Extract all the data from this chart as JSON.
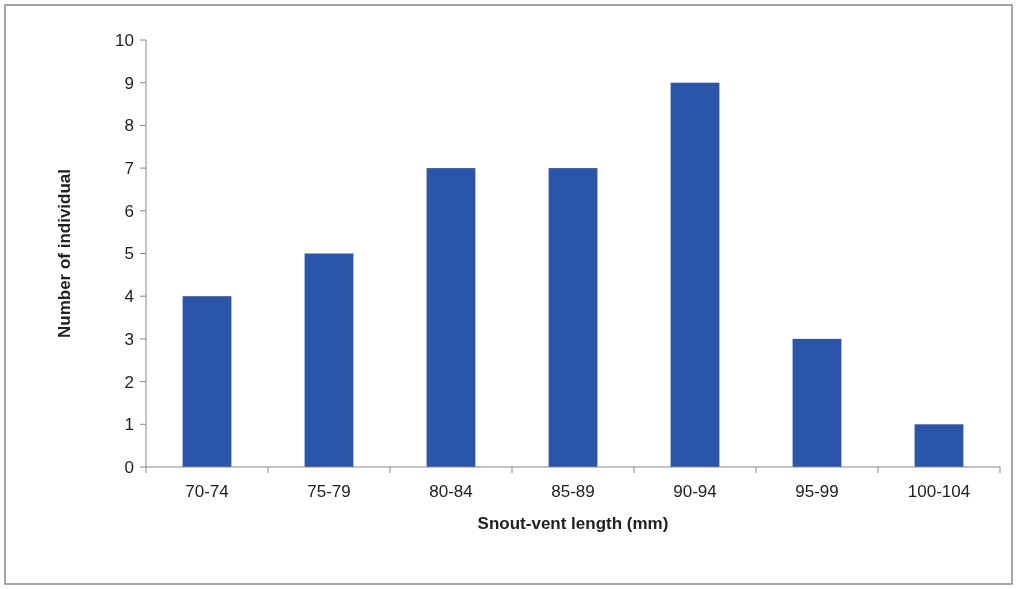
{
  "chart_data": {
    "type": "bar",
    "xlabel": "Snout-vent length (mm)",
    "ylabel": "Number of individual",
    "categories": [
      "70-74",
      "75-79",
      "80-84",
      "85-89",
      "90-94",
      "95-99",
      "100-104"
    ],
    "values": [
      4,
      5,
      7,
      7,
      9,
      3,
      1
    ],
    "color": "#2b55a8",
    "ylim": [
      0,
      10
    ],
    "yticks": [
      0,
      1,
      2,
      3,
      4,
      5,
      6,
      7,
      8,
      9,
      10
    ]
  }
}
